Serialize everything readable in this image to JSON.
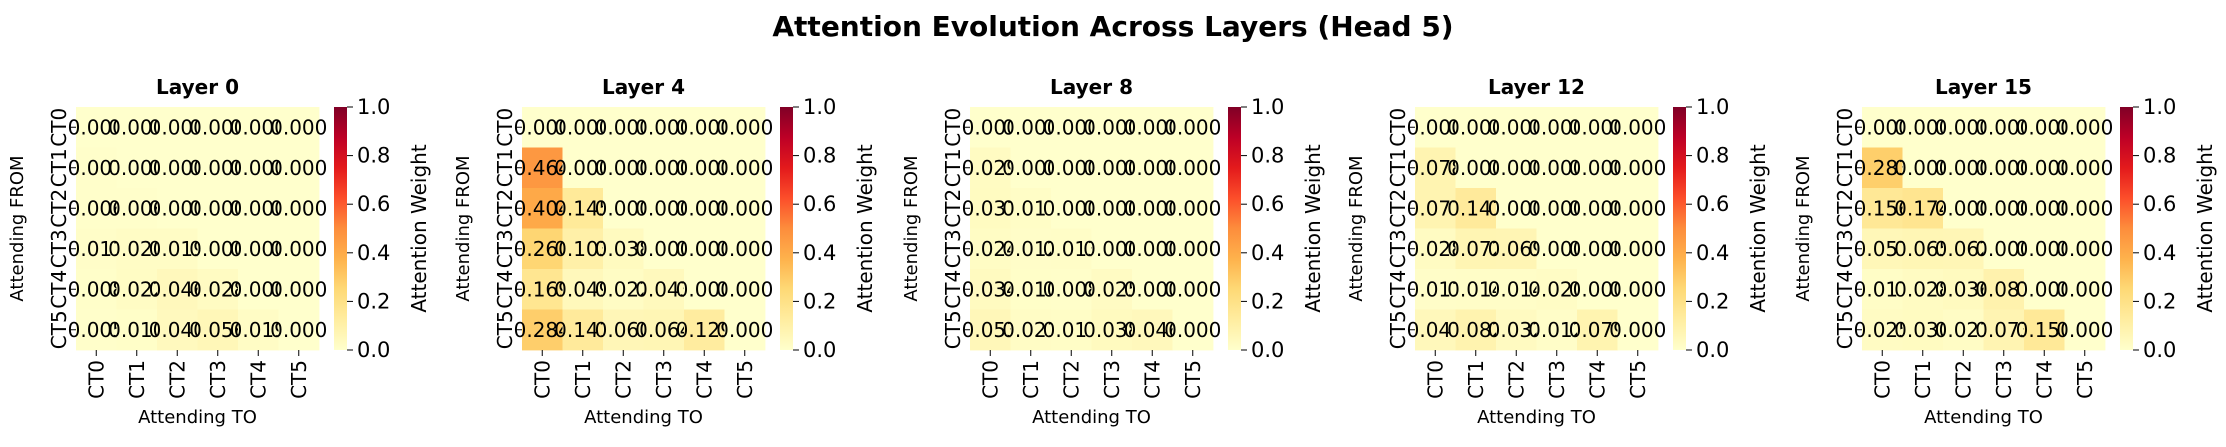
{
  "chart_data": {
    "type": "heatmap",
    "title": "Attention Evolution Across Layers (Head 5)",
    "colormap": "YlOrRd",
    "value_range": [
      0.0,
      1.0
    ],
    "tokens": [
      "CT0",
      "CT1",
      "CT2",
      "CT3",
      "CT4",
      "CT5"
    ],
    "xlabel": "Attending TO",
    "ylabel": "Attending FROM",
    "colorbar_label": "Attention Weight",
    "colorbar_ticks": [
      "0.0",
      "0.2",
      "0.4",
      "0.6",
      "0.8",
      "1.0"
    ],
    "panels": [
      {
        "title": "Layer 0",
        "values": [
          [
            0.0,
            0.0,
            0.0,
            0.0,
            0.0,
            0.0
          ],
          [
            0.007,
            0.0,
            0.0,
            0.0,
            0.0,
            0.0
          ],
          [
            0.006,
            0.006,
            0.0,
            0.0,
            0.0,
            0.0
          ],
          [
            0.011,
            0.02,
            0.019,
            0.0,
            0.0,
            0.0
          ],
          [
            0.008,
            0.022,
            0.046,
            0.028,
            0.0,
            0.0
          ],
          [
            0.005,
            0.01,
            0.04,
            0.056,
            0.019,
            0.0
          ]
        ],
        "labels": [
          [
            "0.000",
            "0.000",
            "0.000",
            "0.000",
            "0.000",
            "0.000"
          ],
          [
            "0.007",
            "0.000",
            "0.000",
            "0.000",
            "0.000",
            "0.000"
          ],
          [
            "0.006",
            "0.006",
            "0.000",
            "0.000",
            "0.000",
            "0.000"
          ],
          [
            "0.011",
            "0.020",
            "0.019",
            "0.000",
            "0.000",
            "0.000"
          ],
          [
            "0.008",
            "0.022",
            "0.046",
            "0.028",
            "0.000",
            "0.000"
          ],
          [
            "0.005",
            "0.010",
            "0.040",
            "0.056",
            "0.019",
            "0.000"
          ]
        ]
      },
      {
        "title": "Layer 4",
        "values": [
          [
            0.0,
            0.0,
            0.0,
            0.0,
            0.0,
            0.0
          ],
          [
            0.464,
            0.0,
            0.0,
            0.0,
            0.0,
            0.0
          ],
          [
            0.404,
            0.145,
            0.0,
            0.0,
            0.0,
            0.0
          ],
          [
            0.26,
            0.103,
            0.038,
            0.0,
            0.0,
            0.0
          ],
          [
            0.169,
            0.049,
            0.022,
            0.043,
            0.0,
            0.0
          ],
          [
            0.284,
            0.141,
            0.06,
            0.064,
            0.129,
            0.0
          ]
        ],
        "labels": [
          [
            "0.000",
            "0.000",
            "0.000",
            "0.000",
            "0.000",
            "0.000"
          ],
          [
            "0.464",
            "0.000",
            "0.000",
            "0.000",
            "0.000",
            "0.000"
          ],
          [
            "0.404",
            "0.145",
            "0.000",
            "0.000",
            "0.000",
            "0.000"
          ],
          [
            "0.260",
            "0.103",
            "0.038",
            "0.000",
            "0.000",
            "0.000"
          ],
          [
            "0.169",
            "0.049",
            "0.022",
            "0.043",
            "0.000",
            "0.000"
          ],
          [
            "0.284",
            "0.141",
            "0.060",
            "0.064",
            "0.129",
            "0.000"
          ]
        ]
      },
      {
        "title": "Layer 8",
        "values": [
          [
            0.0,
            0.0,
            0.0,
            0.0,
            0.0,
            0.0
          ],
          [
            0.029,
            0.0,
            0.0,
            0.0,
            0.0,
            0.0
          ],
          [
            0.031,
            0.017,
            0.0,
            0.0,
            0.0,
            0.0
          ],
          [
            0.024,
            0.012,
            0.013,
            0.0,
            0.0,
            0.0
          ],
          [
            0.034,
            0.01,
            0.008,
            0.025,
            0.0,
            0.0
          ],
          [
            0.053,
            0.021,
            0.017,
            0.038,
            0.046,
            0.0
          ]
        ],
        "labels": [
          [
            "0.000",
            "0.000",
            "0.000",
            "0.000",
            "0.000",
            "0.000"
          ],
          [
            "0.029",
            "0.000",
            "0.000",
            "0.000",
            "0.000",
            "0.000"
          ],
          [
            "0.031",
            "0.017",
            "0.000",
            "0.000",
            "0.000",
            "0.000"
          ],
          [
            "0.024",
            "0.012",
            "0.013",
            "0.000",
            "0.000",
            "0.000"
          ],
          [
            "0.034",
            "0.010",
            "0.008",
            "0.025",
            "0.000",
            "0.000"
          ],
          [
            "0.053",
            "0.021",
            "0.017",
            "0.038",
            "0.046",
            "0.000"
          ]
        ]
      },
      {
        "title": "Layer 12",
        "values": [
          [
            0.0,
            0.0,
            0.0,
            0.0,
            0.0,
            0.0
          ],
          [
            0.078,
            0.0,
            0.0,
            0.0,
            0.0,
            0.0
          ],
          [
            0.077,
            0.141,
            0.0,
            0.0,
            0.0,
            0.0
          ],
          [
            0.028,
            0.072,
            0.069,
            0.0,
            0.0,
            0.0
          ],
          [
            0.011,
            0.014,
            0.014,
            0.02,
            0.0,
            0.0
          ],
          [
            0.047,
            0.082,
            0.032,
            0.012,
            0.079,
            0.0
          ]
        ],
        "labels": [
          [
            "0.000",
            "0.000",
            "0.000",
            "0.000",
            "0.000",
            "0.000"
          ],
          [
            "0.078",
            "0.000",
            "0.000",
            "0.000",
            "0.000",
            "0.000"
          ],
          [
            "0.077",
            "0.141",
            "0.000",
            "0.000",
            "0.000",
            "0.000"
          ],
          [
            "0.028",
            "0.072",
            "0.069",
            "0.000",
            "0.000",
            "0.000"
          ],
          [
            "0.011",
            "0.014",
            "0.014",
            "0.020",
            "0.000",
            "0.000"
          ],
          [
            "0.047",
            "0.082",
            "0.032",
            "0.012",
            "0.079",
            "0.000"
          ]
        ]
      },
      {
        "title": "Layer 15",
        "values": [
          [
            0.0,
            0.0,
            0.0,
            0.0,
            0.0,
            0.0
          ],
          [
            0.283,
            0.0,
            0.0,
            0.0,
            0.0,
            0.0
          ],
          [
            0.156,
            0.174,
            0.0,
            0.0,
            0.0,
            0.0
          ],
          [
            0.057,
            0.065,
            0.062,
            0.0,
            0.0,
            0.0
          ],
          [
            0.017,
            0.028,
            0.036,
            0.087,
            0.0,
            0.0
          ],
          [
            0.025,
            0.03,
            0.021,
            0.073,
            0.15,
            0.0
          ]
        ],
        "labels": [
          [
            "0.000",
            "0.000",
            "0.000",
            "0.000",
            "0.000",
            "0.000"
          ],
          [
            "0.283",
            "0.000",
            "0.000",
            "0.000",
            "0.000",
            "0.000"
          ],
          [
            "0.156",
            "0.174",
            "0.000",
            "0.000",
            "0.000",
            "0.000"
          ],
          [
            "0.057",
            "0.065",
            "0.062",
            "0.000",
            "0.000",
            "0.000"
          ],
          [
            "0.017",
            "0.028",
            "0.036",
            "0.087",
            "0.000",
            "0.000"
          ],
          [
            "0.025",
            "0.030",
            "0.021",
            "0.073",
            "0.150",
            "0.000"
          ]
        ]
      }
    ]
  }
}
